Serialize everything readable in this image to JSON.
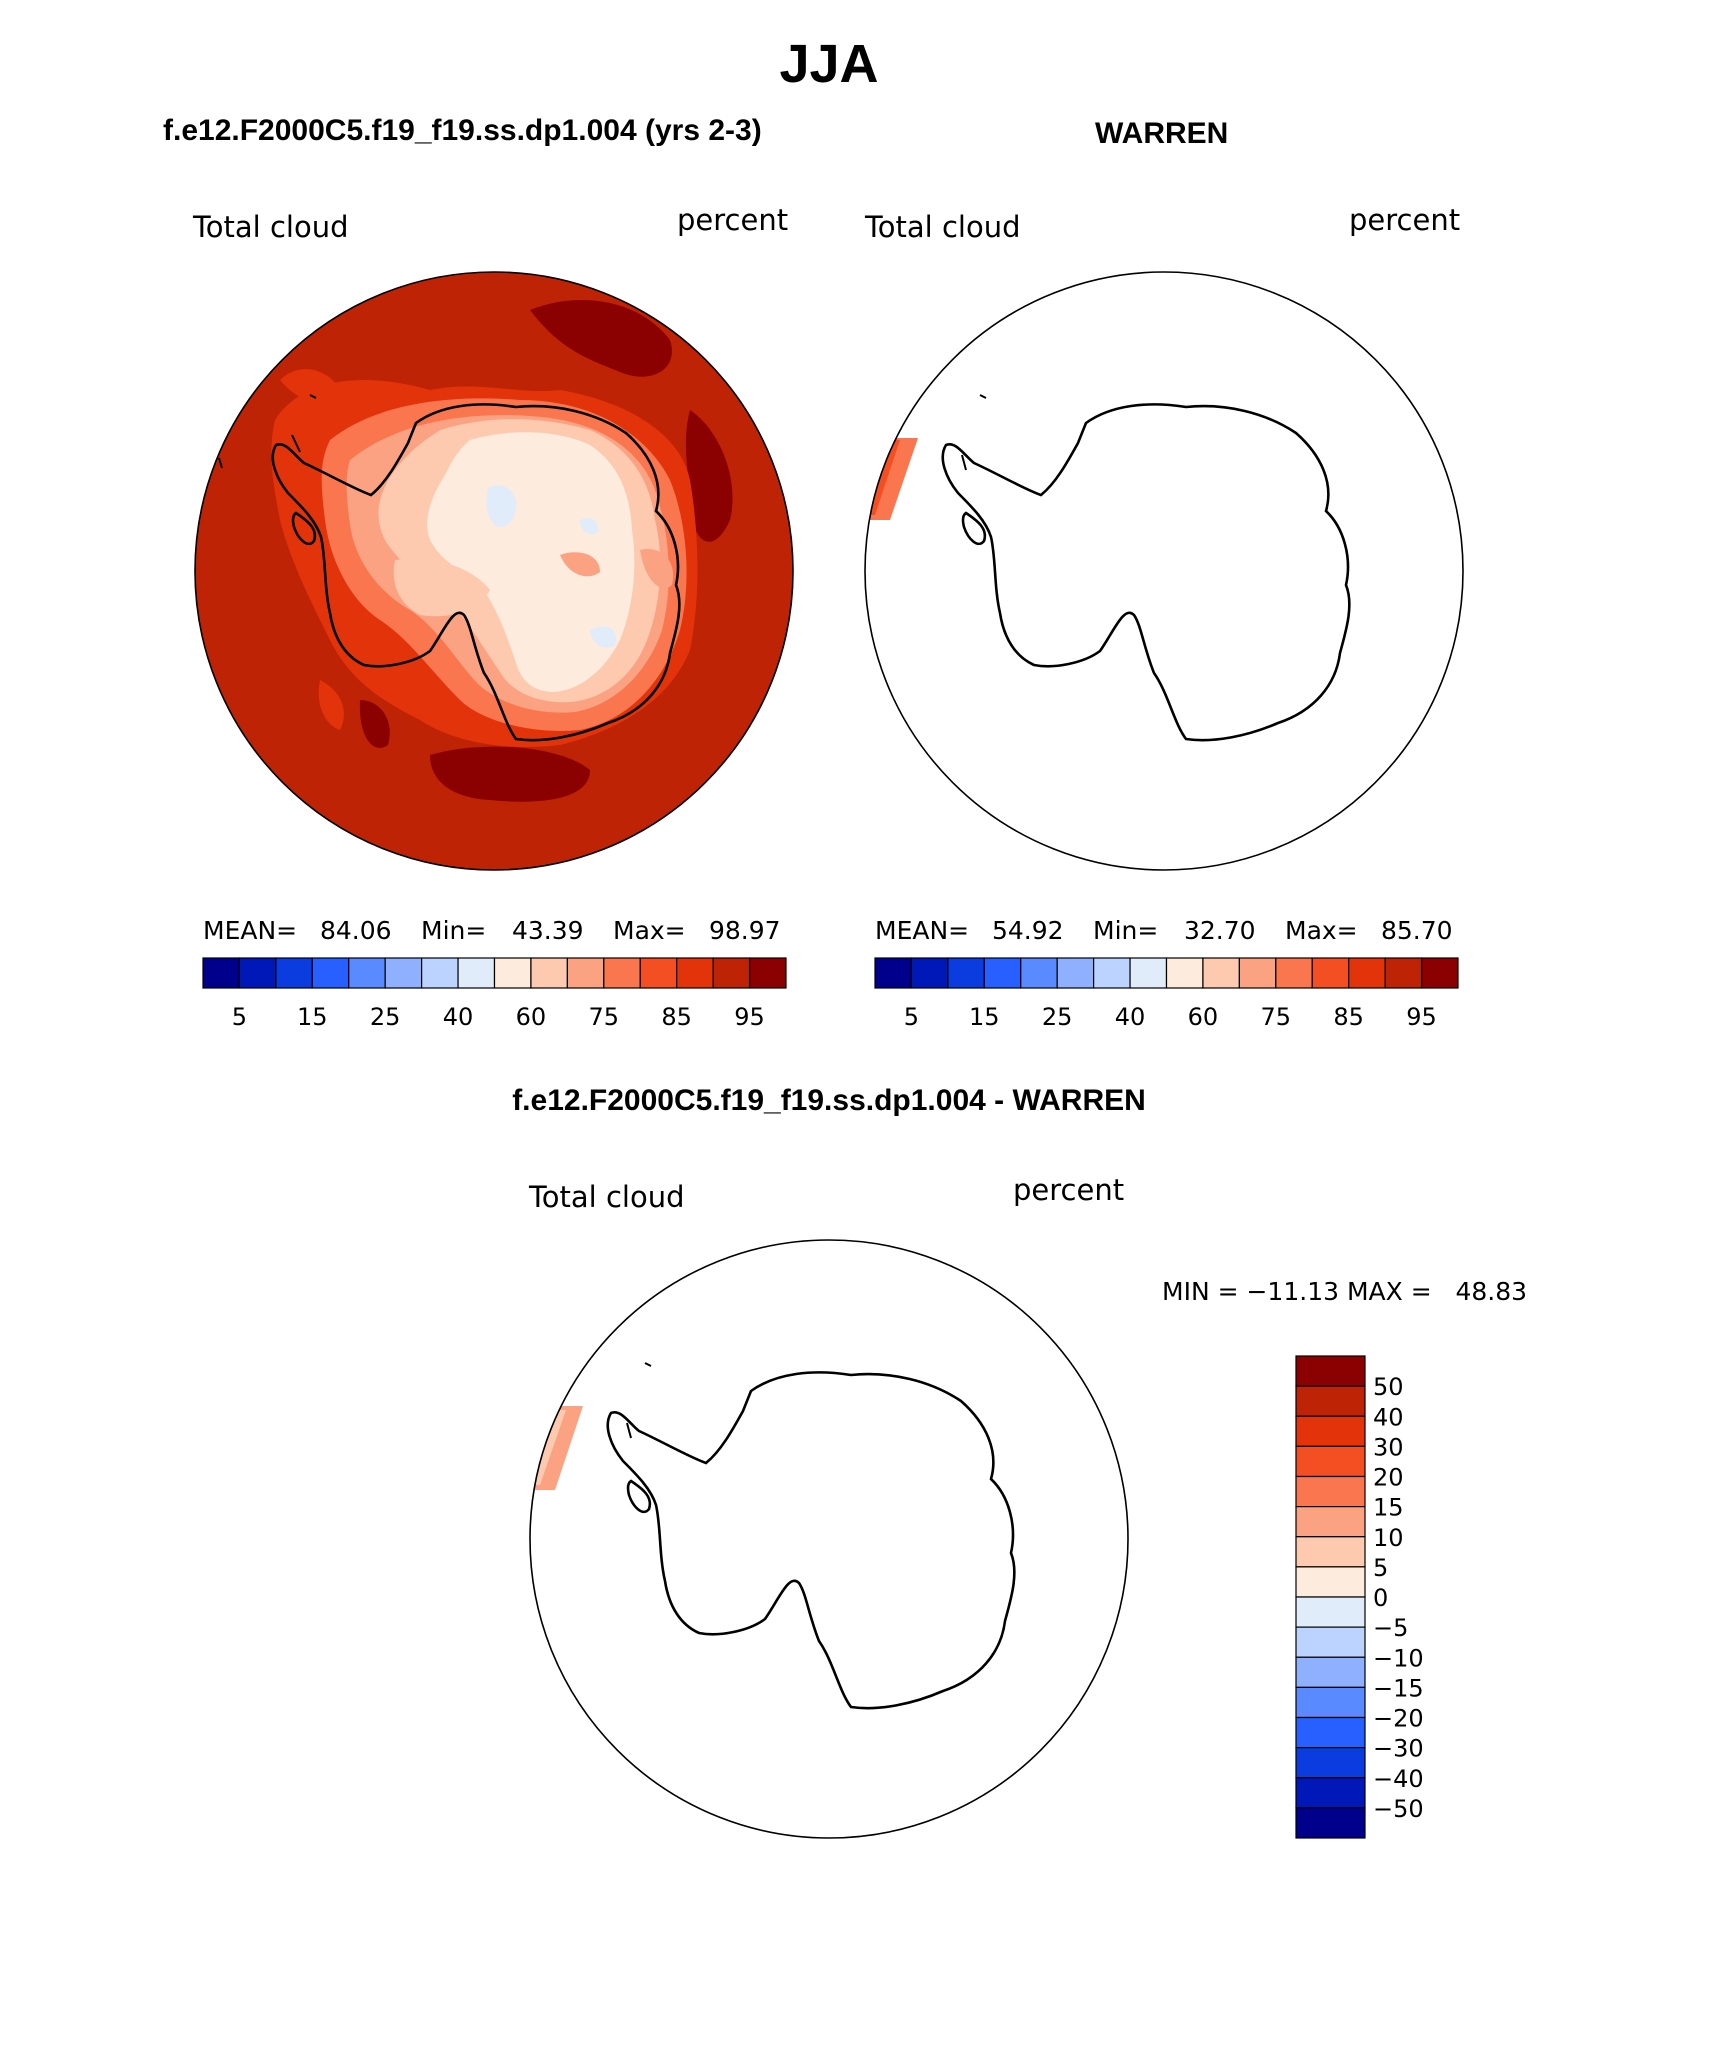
{
  "figure": {
    "title": "JJA",
    "panels": [
      {
        "case_label": "f.e12.F2000C5.f19_f19.ss.dp1.004 (yrs 2-3)",
        "variable": "Total cloud",
        "units": "percent",
        "stats": {
          "mean_label": "MEAN=",
          "mean": "84.06",
          "min_label": "Min=",
          "min": "43.39",
          "max_label": "Max=",
          "max": "98.97"
        }
      },
      {
        "case_label": "WARREN",
        "variable": "Total cloud",
        "units": "percent",
        "stats": {
          "mean_label": "MEAN=",
          "mean": "54.92",
          "min_label": "Min=",
          "min": "32.70",
          "max_label": "Max=",
          "max": "85.70"
        }
      },
      {
        "case_label": "f.e12.F2000C5.f19_f19.ss.dp1.004 - WARREN",
        "variable": "Total cloud",
        "units": "percent",
        "minmax_text": "MIN = −11.13 MAX =   48.83"
      }
    ],
    "colorbar_top": {
      "colors": [
        "#00008c",
        "#0018b8",
        "#0a3ce0",
        "#2860ff",
        "#5a8aff",
        "#8eb0ff",
        "#bcd2ff",
        "#e0ecfa",
        "#fdebdd",
        "#fdcab0",
        "#fba283",
        "#f9764e",
        "#f44f22",
        "#e2330b",
        "#bf2305",
        "#8b0000"
      ],
      "labels": [
        "5",
        "15",
        "25",
        "40",
        "60",
        "75",
        "85",
        "95"
      ]
    },
    "colorbar_diff": {
      "colors": [
        "#8b0000",
        "#bf2305",
        "#e2330b",
        "#f44f22",
        "#f9764e",
        "#fba283",
        "#fdcab0",
        "#fdebdd",
        "#e0ecfa",
        "#bcd2ff",
        "#8eb0ff",
        "#5a8aff",
        "#2860ff",
        "#0a3ce0",
        "#0018b8",
        "#00008c"
      ],
      "labels": [
        "50",
        "40",
        "30",
        "20",
        "15",
        "10",
        "5",
        "0",
        "−5",
        "−10",
        "−15",
        "−20",
        "−30",
        "−40",
        "−50"
      ]
    }
  }
}
